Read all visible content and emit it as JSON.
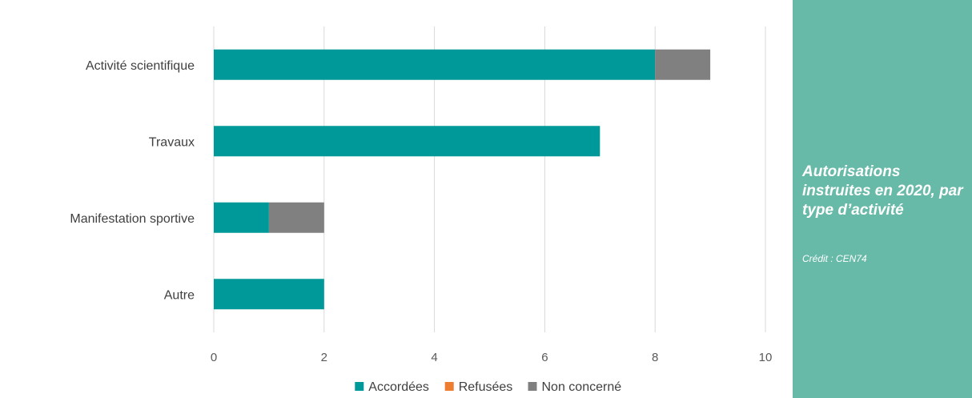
{
  "chart_data": {
    "type": "bar",
    "orientation": "horizontal",
    "stacked": true,
    "categories": [
      "Activité scientifique",
      "Travaux",
      "Manifestation sportive",
      "Autre"
    ],
    "series": [
      {
        "name": "Accordées",
        "color": "#009999",
        "values": [
          8,
          7,
          1,
          2
        ]
      },
      {
        "name": "Refusées",
        "color": "#ed7d31",
        "values": [
          0,
          0,
          0,
          0
        ]
      },
      {
        "name": "Non concerné",
        "color": "#808080",
        "values": [
          1,
          0,
          1,
          0
        ]
      }
    ],
    "xlim": [
      0,
      10
    ],
    "xticks": [
      "0",
      "2",
      "4",
      "6",
      "8",
      "10"
    ],
    "grid": true,
    "legend_position": "bottom"
  },
  "panel": {
    "title": "Autorisations instruites en 2020, par type d’activité",
    "credit": "Crédit : CEN74"
  },
  "colors": {
    "panel_background": "#67b9a8",
    "gridline": "#d9d9d9"
  }
}
